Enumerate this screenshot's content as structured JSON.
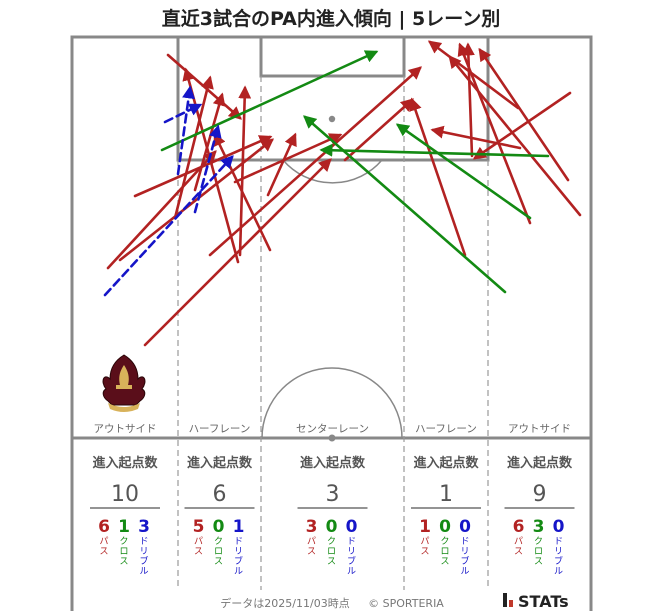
{
  "title": "直近3試合のPA内進入傾向 | 5レーン別",
  "footer": {
    "date": "データは2025/11/03時点",
    "copyright": "© SPORTERIA",
    "brand": "STATs"
  },
  "colors": {
    "pass": "#b22222",
    "cross": "#138a13",
    "dribble": "#1515c8",
    "pitch_line": "#888888",
    "text_gray": "#555555"
  },
  "chart_data": {
    "type": "arrow-map",
    "lanes": [
      {
        "label": "アウトサイド",
        "count_label": "進入起点数",
        "total": "10",
        "pass": "6",
        "cross": "1",
        "dribble": "3"
      },
      {
        "label": "ハーフレーン",
        "count_label": "進入起点数",
        "total": "6",
        "pass": "5",
        "cross": "0",
        "dribble": "1"
      },
      {
        "label": "センターレーン",
        "count_label": "進入起点数",
        "total": "3",
        "pass": "3",
        "cross": "0",
        "dribble": "0"
      },
      {
        "label": "ハーフレーン",
        "count_label": "進入起点数",
        "total": "1",
        "pass": "1",
        "cross": "0",
        "dribble": "0"
      },
      {
        "label": "アウトサイド",
        "count_label": "進入起点数",
        "total": "9",
        "pass": "6",
        "cross": "3",
        "dribble": "0"
      }
    ],
    "type_labels": {
      "pass": "パス",
      "cross": "クロス",
      "dribble": "ドリブル"
    },
    "arrows": [
      {
        "type": "pass",
        "from": [
          145,
          345
        ],
        "to": [
          330,
          160
        ]
      },
      {
        "type": "pass",
        "from": [
          108,
          268
        ],
        "to": [
          215,
          152
        ]
      },
      {
        "type": "pass",
        "from": [
          120,
          260
        ],
        "to": [
          272,
          140
        ]
      },
      {
        "type": "pass",
        "from": [
          135,
          196
        ],
        "to": [
          270,
          137
        ]
      },
      {
        "type": "pass",
        "from": [
          168,
          55
        ],
        "to": [
          240,
          118
        ]
      },
      {
        "type": "pass",
        "from": [
          175,
          218
        ],
        "to": [
          210,
          78
        ]
      },
      {
        "type": "pass",
        "from": [
          195,
          190
        ],
        "to": [
          222,
          95
        ]
      },
      {
        "type": "pass",
        "from": [
          240,
          255
        ],
        "to": [
          245,
          88
        ]
      },
      {
        "type": "pass",
        "from": [
          238,
          262
        ],
        "to": [
          186,
          70
        ]
      },
      {
        "type": "pass",
        "from": [
          270,
          250
        ],
        "to": [
          215,
          135
        ]
      },
      {
        "type": "pass",
        "from": [
          268,
          195
        ],
        "to": [
          295,
          135
        ]
      },
      {
        "type": "pass",
        "from": [
          235,
          182
        ],
        "to": [
          340,
          135
        ]
      },
      {
        "type": "pass",
        "from": [
          210,
          255
        ],
        "to": [
          420,
          68
        ]
      },
      {
        "type": "pass",
        "from": [
          345,
          160
        ],
        "to": [
          412,
          100
        ]
      },
      {
        "type": "pass",
        "from": [
          465,
          255
        ],
        "to": [
          412,
          100
        ]
      },
      {
        "type": "pass",
        "from": [
          518,
          108
        ],
        "to": [
          430,
          42
        ]
      },
      {
        "type": "pass",
        "from": [
          472,
          156
        ],
        "to": [
          468,
          45
        ]
      },
      {
        "type": "pass",
        "from": [
          530,
          223
        ],
        "to": [
          460,
          45
        ]
      },
      {
        "type": "pass",
        "from": [
          568,
          180
        ],
        "to": [
          480,
          50
        ]
      },
      {
        "type": "pass",
        "from": [
          580,
          215
        ],
        "to": [
          450,
          57
        ]
      },
      {
        "type": "pass",
        "from": [
          570,
          93
        ],
        "to": [
          475,
          158
        ]
      },
      {
        "type": "pass",
        "from": [
          520,
          148
        ],
        "to": [
          433,
          130
        ]
      },
      {
        "type": "cross",
        "from": [
          162,
          150
        ],
        "to": [
          376,
          52
        ]
      },
      {
        "type": "cross",
        "from": [
          530,
          218
        ],
        "to": [
          398,
          125
        ]
      },
      {
        "type": "cross",
        "from": [
          505,
          292
        ],
        "to": [
          305,
          117
        ]
      },
      {
        "type": "cross",
        "from": [
          548,
          156
        ],
        "to": [
          322,
          150
        ]
      },
      {
        "type": "dribble",
        "from": [
          105,
          295
        ],
        "to": [
          232,
          157
        ]
      },
      {
        "type": "dribble",
        "from": [
          178,
          174
        ],
        "to": [
          190,
          88
        ]
      },
      {
        "type": "dribble",
        "from": [
          195,
          212
        ],
        "to": [
          218,
          127
        ]
      },
      {
        "type": "dribble",
        "from": [
          165,
          122
        ],
        "to": [
          200,
          105
        ]
      }
    ]
  }
}
